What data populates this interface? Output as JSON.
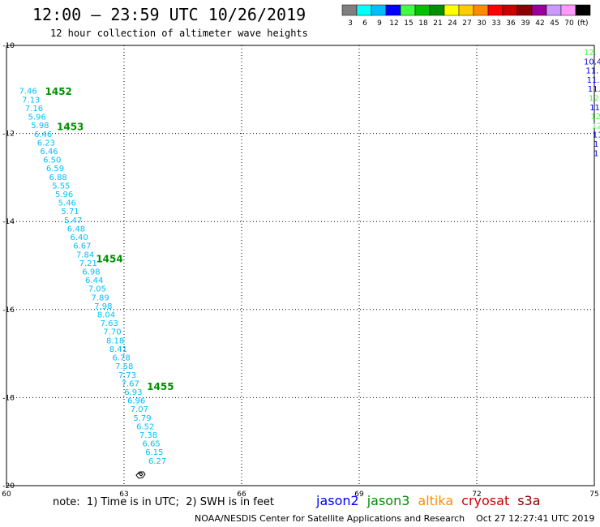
{
  "header": {
    "title": "12:00 – 23:59 UTC 10/26/2019",
    "subtitle": "12 hour collection of altimeter wave heights"
  },
  "scale": {
    "colors": [
      "#7f7f7f",
      "#00ffff",
      "#00bfff",
      "#0000ff",
      "#40ff40",
      "#00c000",
      "#009000",
      "#ffff00",
      "#ffcc00",
      "#ff8c00",
      "#ff0000",
      "#cc0000",
      "#8b0000",
      "#990099",
      "#cc99ff",
      "#ff99ff",
      "#000000"
    ],
    "labels": [
      "3",
      "6",
      "9",
      "12",
      "15",
      "18",
      "21",
      "24",
      "27",
      "30",
      "33",
      "36",
      "39",
      "42",
      "45",
      "70",
      "(ft)"
    ]
  },
  "map": {
    "lon_ticks": [
      "60",
      "63",
      "66",
      "69",
      "72",
      "75"
    ],
    "lat_ticks": [
      "-10",
      "-12",
      "-14",
      "-16",
      "-18",
      "-20"
    ]
  },
  "passes": [
    {
      "label": "1452",
      "lat": -11.05,
      "lon": 60.9
    },
    {
      "label": "1453",
      "lat": -11.85,
      "lon": 61.2
    },
    {
      "label": "1454",
      "lat": -14.85,
      "lon": 62.2
    },
    {
      "label": "1455",
      "lat": -17.75,
      "lon": 63.5
    }
  ],
  "track_values": [
    "7.46",
    "7.13",
    "7.16",
    "5.96",
    "5.98",
    "6.46",
    "6.23",
    "6.46",
    "6.50",
    "6.59",
    "6.88",
    "5.55",
    "5.96",
    "5.46",
    "5.71",
    "5.47",
    "6.48",
    "6.40",
    "6.67",
    "7.84",
    "7.21",
    "6.98",
    "6.44",
    "7.05",
    "7.89",
    "7.98",
    "8.04",
    "7.63",
    "7.70",
    "8.18",
    "8.41",
    "6.78",
    "7.58",
    "7.73",
    "7.67",
    "6.93",
    "6.96",
    "7.07",
    "5.79",
    "6.52",
    "7.38",
    "6.65",
    "6.15",
    "6.27"
  ],
  "east_values": [
    {
      "text": "12.",
      "color": "#40ff40"
    },
    {
      "text": "10.4",
      "color": "#0000ff"
    },
    {
      "text": "11.",
      "color": "#0000ff"
    },
    {
      "text": "11.",
      "color": "#0000ff"
    },
    {
      "text": "11.",
      "color": "#0000ff"
    },
    {
      "text": "12",
      "color": "#40ff40"
    },
    {
      "text": "11",
      "color": "#0000ff"
    },
    {
      "text": "12",
      "color": "#40ff40"
    },
    {
      "text": "12",
      "color": "#40ff40"
    },
    {
      "text": "11",
      "color": "#0000ff"
    },
    {
      "text": "1",
      "color": "#0000ff"
    },
    {
      "text": "1",
      "color": "#0000ff"
    }
  ],
  "footer": {
    "note": "note:  1) Time is in UTC;  2) SWH is in feet",
    "satellites": [
      {
        "name": "jason2",
        "color": "#0000ff"
      },
      {
        "name": "jason3",
        "color": "#009000"
      },
      {
        "name": "altika",
        "color": "#ff8c00"
      },
      {
        "name": "cryosat",
        "color": "#cc0000"
      },
      {
        "name": "s3a",
        "color": "#8b0000"
      }
    ],
    "credit": "NOAA/NESDIS Center for Satellite Applications and Research    Oct 27 12:27:41 UTC 2019"
  },
  "colors": {
    "track": "#00bfff",
    "pass_label": "#009000",
    "grid": "#000000"
  }
}
